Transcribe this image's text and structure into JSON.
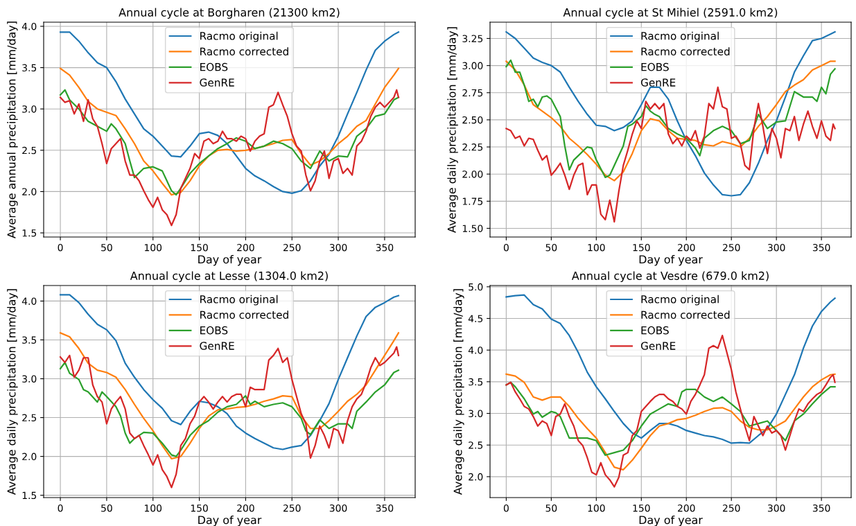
{
  "chart_data": [
    {
      "type": "line",
      "title": "Annual cycle at Borgharen (21300 km2)",
      "xlabel": "Day of year",
      "ylabel": "Average annual precipitation [mm/day]",
      "xlim": [
        -18,
        383
      ],
      "ylim": [
        1.45,
        4.05
      ],
      "xticks": [
        0,
        50,
        100,
        150,
        200,
        250,
        300,
        350
      ],
      "yticks": [
        1.5,
        {
          "value": 2,
          "label": "2.0"
        },
        2.5,
        {
          "value": 3,
          "label": "3.0"
        },
        3.5,
        {
          "value": 4,
          "label": "4.0"
        }
      ],
      "grid": true,
      "legend": "top",
      "x": [
        0,
        10,
        20,
        30,
        40,
        50,
        60,
        70,
        80,
        90,
        100,
        110,
        120,
        130,
        140,
        150,
        160,
        170,
        180,
        190,
        200,
        210,
        220,
        230,
        240,
        250,
        260,
        270,
        280,
        290,
        300,
        310,
        320,
        330,
        340,
        350,
        360,
        365
      ],
      "series": [
        {
          "name": "Racmo original",
          "color": "#1f77b4",
          "values": [
            3.93,
            3.93,
            3.82,
            3.68,
            3.56,
            3.5,
            3.33,
            3.12,
            2.94,
            2.76,
            2.67,
            2.55,
            2.43,
            2.42,
            2.55,
            2.7,
            2.72,
            2.68,
            2.58,
            2.43,
            2.28,
            2.19,
            2.13,
            2.06,
            2.0,
            1.98,
            2.01,
            2.13,
            2.31,
            2.45,
            2.67,
            2.94,
            3.2,
            3.47,
            3.71,
            3.82,
            3.9,
            3.93
          ]
        },
        {
          "name": "Racmo corrected",
          "color": "#ff7f0e",
          "values": [
            3.49,
            3.41,
            3.26,
            3.09,
            3.0,
            2.96,
            2.92,
            2.76,
            2.58,
            2.37,
            2.25,
            2.1,
            1.96,
            1.99,
            2.13,
            2.31,
            2.43,
            2.5,
            2.51,
            2.49,
            2.5,
            2.52,
            2.55,
            2.58,
            2.62,
            2.63,
            2.46,
            2.32,
            2.37,
            2.46,
            2.58,
            2.67,
            2.79,
            2.86,
            3.06,
            3.26,
            3.41,
            3.49
          ]
        },
        {
          "name": "EOBS",
          "color": "#2ca02c",
          "x": [
            0,
            5,
            10,
            20,
            30,
            40,
            50,
            55,
            60,
            70,
            75,
            80,
            90,
            100,
            110,
            120,
            125,
            130,
            140,
            150,
            160,
            170,
            180,
            190,
            200,
            210,
            220,
            230,
            240,
            250,
            260,
            270,
            280,
            290,
            300,
            310,
            320,
            330,
            340,
            350,
            360,
            365
          ],
          "values": [
            3.17,
            3.23,
            3.11,
            3.0,
            2.85,
            2.79,
            2.73,
            2.82,
            2.76,
            2.58,
            2.37,
            2.17,
            2.28,
            2.3,
            2.25,
            2.01,
            1.96,
            2.04,
            2.22,
            2.34,
            2.43,
            2.52,
            2.58,
            2.65,
            2.61,
            2.52,
            2.55,
            2.61,
            2.58,
            2.52,
            2.37,
            2.28,
            2.49,
            2.37,
            2.43,
            2.42,
            2.67,
            2.76,
            2.91,
            2.94,
            3.11,
            3.14
          ]
        },
        {
          "name": "GenRE",
          "color": "#d62728",
          "x": [
            0,
            5,
            10,
            15,
            20,
            25,
            30,
            35,
            40,
            45,
            50,
            55,
            60,
            65,
            70,
            75,
            80,
            85,
            90,
            95,
            100,
            105,
            110,
            115,
            120,
            125,
            130,
            135,
            140,
            145,
            150,
            155,
            160,
            165,
            170,
            175,
            180,
            185,
            190,
            195,
            200,
            205,
            210,
            215,
            220,
            225,
            230,
            235,
            240,
            245,
            250,
            255,
            260,
            265,
            270,
            275,
            280,
            285,
            290,
            295,
            300,
            305,
            310,
            315,
            320,
            325,
            330,
            335,
            340,
            345,
            350,
            355,
            360,
            363,
            365
          ],
          "values": [
            3.14,
            3.08,
            3.1,
            2.94,
            3.06,
            2.85,
            3.11,
            2.88,
            2.79,
            2.58,
            2.34,
            2.52,
            2.58,
            2.64,
            2.37,
            2.2,
            2.2,
            2.13,
            2.01,
            1.9,
            1.81,
            1.93,
            1.78,
            1.72,
            1.59,
            1.72,
            2.04,
            2.16,
            2.28,
            2.46,
            2.4,
            2.61,
            2.64,
            2.58,
            2.61,
            2.73,
            2.64,
            2.64,
            2.61,
            2.67,
            2.64,
            2.49,
            2.61,
            2.67,
            2.7,
            3.02,
            3.05,
            3.2,
            3.05,
            2.91,
            2.7,
            2.55,
            2.49,
            2.2,
            2.01,
            2.13,
            2.37,
            2.49,
            2.16,
            2.37,
            2.4,
            2.22,
            2.28,
            2.2,
            2.55,
            2.61,
            2.73,
            2.91,
            3.02,
            3.08,
            3.02,
            3.08,
            3.14,
            3.23,
            3.14
          ]
        }
      ]
    },
    {
      "type": "line",
      "title": "Annual cycle at St Mihiel (2591.0 km2)",
      "xlabel": "Day of year",
      "ylabel": "Average daily precipitation [mm/day]",
      "xlim": [
        -18,
        383
      ],
      "ylim": [
        1.42,
        3.4
      ],
      "xticks": [
        0,
        50,
        100,
        150,
        200,
        250,
        300,
        350
      ],
      "yticks": [
        {
          "value": 1.5,
          "label": "1.50"
        },
        1.75,
        {
          "value": 2.0,
          "label": "2.00"
        },
        2.25,
        {
          "value": 2.5,
          "label": "2.50"
        },
        2.75,
        {
          "value": 3.0,
          "label": "3.00"
        },
        3.25
      ],
      "grid": true,
      "legend": "top",
      "x": [
        0,
        10,
        20,
        30,
        40,
        50,
        60,
        70,
        80,
        90,
        100,
        110,
        120,
        130,
        140,
        150,
        160,
        170,
        180,
        190,
        200,
        210,
        220,
        230,
        240,
        250,
        260,
        270,
        280,
        290,
        300,
        310,
        320,
        330,
        340,
        350,
        360,
        365
      ],
      "series": [
        {
          "name": "Racmo original",
          "color": "#1f77b4",
          "values": [
            3.31,
            3.25,
            3.16,
            3.07,
            3.03,
            3.0,
            2.94,
            2.8,
            2.67,
            2.55,
            2.45,
            2.44,
            2.4,
            2.43,
            2.49,
            2.64,
            2.8,
            2.8,
            2.69,
            2.49,
            2.31,
            2.17,
            2.01,
            1.9,
            1.81,
            1.8,
            1.81,
            1.92,
            2.1,
            2.31,
            2.49,
            2.71,
            2.94,
            3.09,
            3.23,
            3.25,
            3.29,
            3.31
          ]
        },
        {
          "name": "Racmo corrected",
          "color": "#ff7f0e",
          "values": [
            3.04,
            2.96,
            2.82,
            2.64,
            2.58,
            2.52,
            2.44,
            2.33,
            2.26,
            2.18,
            2.09,
            1.99,
            1.94,
            2.02,
            2.19,
            2.4,
            2.51,
            2.49,
            2.4,
            2.33,
            2.32,
            2.31,
            2.27,
            2.26,
            2.3,
            2.28,
            2.25,
            2.33,
            2.44,
            2.53,
            2.64,
            2.76,
            2.82,
            2.87,
            2.96,
            3.0,
            3.04,
            3.04
          ]
        },
        {
          "name": "EOBS",
          "color": "#2ca02c",
          "x": [
            0,
            5,
            10,
            15,
            20,
            25,
            30,
            35,
            40,
            45,
            50,
            60,
            65,
            70,
            75,
            80,
            90,
            95,
            100,
            110,
            115,
            120,
            130,
            135,
            140,
            150,
            155,
            160,
            165,
            170,
            180,
            190,
            200,
            210,
            215,
            220,
            230,
            240,
            250,
            260,
            270,
            280,
            290,
            300,
            310,
            320,
            330,
            340,
            345,
            350,
            355,
            360,
            365
          ],
          "values": [
            2.99,
            3.05,
            2.94,
            2.94,
            2.82,
            2.67,
            2.69,
            2.62,
            2.71,
            2.72,
            2.69,
            2.53,
            2.26,
            2.04,
            2.13,
            2.17,
            2.25,
            2.24,
            2.13,
            1.97,
            1.99,
            2.08,
            2.26,
            2.44,
            2.46,
            2.53,
            2.63,
            2.58,
            2.55,
            2.53,
            2.42,
            2.37,
            2.33,
            2.24,
            2.17,
            2.33,
            2.4,
            2.44,
            2.4,
            2.28,
            2.31,
            2.55,
            2.42,
            2.48,
            2.49,
            2.76,
            2.71,
            2.71,
            2.67,
            2.8,
            2.74,
            2.92,
            2.97
          ]
        },
        {
          "name": "GenRE",
          "color": "#d62728",
          "x": [
            0,
            5,
            10,
            15,
            20,
            25,
            30,
            35,
            40,
            45,
            50,
            55,
            60,
            65,
            70,
            75,
            80,
            85,
            90,
            95,
            100,
            105,
            110,
            115,
            120,
            125,
            130,
            135,
            140,
            145,
            150,
            155,
            160,
            165,
            170,
            175,
            180,
            185,
            190,
            195,
            200,
            205,
            210,
            215,
            220,
            225,
            230,
            235,
            240,
            245,
            250,
            255,
            260,
            265,
            270,
            275,
            280,
            285,
            290,
            295,
            300,
            305,
            310,
            315,
            320,
            325,
            330,
            335,
            340,
            345,
            350,
            355,
            360,
            363,
            365
          ],
          "values": [
            2.42,
            2.4,
            2.33,
            2.35,
            2.26,
            2.33,
            2.32,
            2.22,
            2.13,
            2.17,
            1.99,
            2.04,
            2.1,
            1.99,
            1.86,
            1.99,
            2.08,
            2.1,
            1.81,
            1.9,
            1.9,
            1.63,
            1.58,
            1.76,
            1.56,
            1.84,
            2.08,
            2.22,
            2.37,
            2.49,
            2.42,
            2.67,
            2.6,
            2.65,
            2.6,
            2.65,
            2.37,
            2.28,
            2.33,
            2.26,
            2.35,
            2.31,
            2.4,
            2.24,
            2.35,
            2.65,
            2.6,
            2.8,
            2.62,
            2.6,
            2.33,
            2.35,
            2.28,
            2.08,
            2.04,
            2.42,
            2.65,
            2.44,
            2.19,
            2.42,
            2.33,
            2.15,
            2.42,
            2.4,
            2.53,
            2.31,
            2.46,
            2.58,
            2.44,
            2.33,
            2.49,
            2.35,
            2.31,
            2.46,
            2.42
          ]
        }
      ]
    },
    {
      "type": "line",
      "title": "Annual cycle at Lesse (1304.0 km2)",
      "xlabel": "Day of year",
      "ylabel": "Average daily precipitation [mm/day]",
      "xlim": [
        -18,
        383
      ],
      "ylim": [
        1.47,
        4.2
      ],
      "xticks": [
        0,
        50,
        100,
        150,
        200,
        250,
        300,
        350
      ],
      "yticks": [
        1.5,
        {
          "value": 2,
          "label": "2.0"
        },
        2.5,
        {
          "value": 3,
          "label": "3.0"
        },
        3.5,
        {
          "value": 4,
          "label": "4.0"
        }
      ],
      "grid": true,
      "legend": "top",
      "x": [
        0,
        10,
        20,
        30,
        40,
        50,
        60,
        70,
        80,
        90,
        100,
        110,
        120,
        130,
        140,
        150,
        160,
        170,
        180,
        190,
        200,
        210,
        220,
        230,
        240,
        250,
        260,
        270,
        280,
        290,
        300,
        310,
        320,
        330,
        340,
        350,
        360,
        365
      ],
      "series": [
        {
          "name": "Racmo original",
          "color": "#1f77b4",
          "values": [
            4.08,
            4.08,
            3.98,
            3.83,
            3.7,
            3.63,
            3.49,
            3.2,
            3.02,
            2.86,
            2.73,
            2.62,
            2.46,
            2.41,
            2.58,
            2.71,
            2.69,
            2.64,
            2.55,
            2.39,
            2.3,
            2.23,
            2.17,
            2.11,
            2.09,
            2.12,
            2.14,
            2.27,
            2.46,
            2.68,
            2.99,
            3.27,
            3.55,
            3.8,
            3.92,
            3.98,
            4.05,
            4.07
          ]
        },
        {
          "name": "Racmo corrected",
          "color": "#ff7f0e",
          "values": [
            3.59,
            3.54,
            3.39,
            3.2,
            3.11,
            3.08,
            3.02,
            2.86,
            2.67,
            2.49,
            2.33,
            2.14,
            1.97,
            2.0,
            2.17,
            2.36,
            2.52,
            2.6,
            2.61,
            2.63,
            2.64,
            2.67,
            2.71,
            2.74,
            2.78,
            2.77,
            2.52,
            2.36,
            2.36,
            2.46,
            2.58,
            2.71,
            2.8,
            2.92,
            3.11,
            3.3,
            3.49,
            3.59
          ]
        },
        {
          "name": "EOBS",
          "color": "#2ca02c",
          "x": [
            0,
            5,
            10,
            20,
            25,
            30,
            40,
            45,
            50,
            60,
            65,
            70,
            75,
            80,
            90,
            100,
            110,
            120,
            125,
            130,
            140,
            150,
            160,
            170,
            180,
            190,
            200,
            205,
            210,
            220,
            230,
            240,
            250,
            260,
            265,
            270,
            280,
            290,
            300,
            310,
            315,
            320,
            330,
            340,
            350,
            360,
            365
          ],
          "values": [
            3.13,
            3.21,
            3.07,
            2.99,
            2.86,
            2.83,
            2.7,
            2.83,
            2.77,
            2.64,
            2.52,
            2.3,
            2.17,
            2.23,
            2.31,
            2.3,
            2.17,
            2.02,
            2.0,
            2.08,
            2.27,
            2.39,
            2.46,
            2.57,
            2.64,
            2.67,
            2.78,
            2.67,
            2.71,
            2.64,
            2.67,
            2.69,
            2.64,
            2.49,
            2.33,
            2.28,
            2.47,
            2.36,
            2.42,
            2.42,
            2.36,
            2.58,
            2.7,
            2.83,
            2.92,
            3.08,
            3.11
          ]
        },
        {
          "name": "GenRE",
          "color": "#d62728",
          "x": [
            0,
            5,
            10,
            15,
            20,
            25,
            30,
            35,
            40,
            45,
            50,
            55,
            60,
            65,
            70,
            75,
            80,
            85,
            90,
            95,
            100,
            105,
            110,
            115,
            120,
            125,
            130,
            135,
            140,
            145,
            150,
            155,
            160,
            165,
            170,
            175,
            180,
            185,
            190,
            195,
            200,
            205,
            210,
            215,
            220,
            225,
            230,
            235,
            240,
            245,
            250,
            255,
            260,
            265,
            270,
            275,
            280,
            285,
            290,
            295,
            300,
            305,
            310,
            315,
            320,
            325,
            330,
            335,
            340,
            345,
            350,
            355,
            360,
            363,
            365
          ],
          "values": [
            3.28,
            3.21,
            3.3,
            3.02,
            3.11,
            3.27,
            3.27,
            2.92,
            2.77,
            2.7,
            2.42,
            2.61,
            2.7,
            2.77,
            2.61,
            2.3,
            2.23,
            2.27,
            2.14,
            2.02,
            1.89,
            2.02,
            1.83,
            1.74,
            1.6,
            1.77,
            2.14,
            2.23,
            2.42,
            2.52,
            2.7,
            2.77,
            2.7,
            2.61,
            2.7,
            2.77,
            2.7,
            2.77,
            2.8,
            2.8,
            2.64,
            2.89,
            2.86,
            2.86,
            2.86,
            3.24,
            3.3,
            3.39,
            3.21,
            3.27,
            2.99,
            2.77,
            2.55,
            2.42,
            1.98,
            2.14,
            2.39,
            2.27,
            2.11,
            2.36,
            2.33,
            2.17,
            2.46,
            2.64,
            2.74,
            2.8,
            2.95,
            3.14,
            3.27,
            3.17,
            3.21,
            3.27,
            3.33,
            3.41,
            3.3
          ]
        }
      ]
    },
    {
      "type": "line",
      "title": "Annual cycle at Vesdre (679.0 km2)",
      "xlabel": "Day of year",
      "ylabel": "Average daily precipitation [mm/day]",
      "xlim": [
        -18,
        383
      ],
      "ylim": [
        1.67,
        5.02
      ],
      "xticks": [
        0,
        50,
        100,
        150,
        200,
        250,
        300,
        350
      ],
      "yticks": [
        {
          "value": 2,
          "label": "2.0"
        },
        2.5,
        {
          "value": 3,
          "label": "3.0"
        },
        3.5,
        {
          "value": 4,
          "label": "4.0"
        },
        4.5,
        {
          "value": 5,
          "label": "5.0"
        }
      ],
      "grid": true,
      "legend": "top",
      "x": [
        0,
        10,
        20,
        30,
        40,
        50,
        60,
        70,
        80,
        90,
        100,
        110,
        120,
        130,
        140,
        150,
        160,
        170,
        180,
        190,
        200,
        210,
        220,
        230,
        240,
        250,
        260,
        270,
        280,
        290,
        300,
        310,
        320,
        330,
        340,
        350,
        360,
        365
      ],
      "series": [
        {
          "name": "Racmo original",
          "color": "#1f77b4",
          "values": [
            4.84,
            4.86,
            4.87,
            4.72,
            4.65,
            4.49,
            4.42,
            4.23,
            3.96,
            3.65,
            3.42,
            3.23,
            3.03,
            2.84,
            2.69,
            2.61,
            2.73,
            2.84,
            2.84,
            2.8,
            2.73,
            2.69,
            2.65,
            2.63,
            2.59,
            2.53,
            2.54,
            2.53,
            2.65,
            2.76,
            2.99,
            3.3,
            3.61,
            4.03,
            4.38,
            4.61,
            4.76,
            4.82
          ]
        },
        {
          "name": "Racmo corrected",
          "color": "#ff7f0e",
          "values": [
            3.62,
            3.59,
            3.49,
            3.26,
            3.21,
            3.26,
            3.26,
            3.11,
            2.92,
            2.76,
            2.61,
            2.38,
            2.15,
            2.11,
            2.26,
            2.45,
            2.65,
            2.8,
            2.84,
            2.9,
            2.92,
            2.97,
            3.03,
            3.08,
            3.09,
            3.03,
            2.88,
            2.78,
            2.74,
            2.74,
            2.8,
            2.88,
            3.07,
            3.26,
            3.42,
            3.53,
            3.61,
            3.62
          ]
        },
        {
          "name": "EOBS",
          "color": "#2ca02c",
          "x": [
            0,
            5,
            10,
            20,
            30,
            35,
            40,
            50,
            55,
            60,
            70,
            80,
            90,
            100,
            110,
            120,
            130,
            140,
            150,
            160,
            170,
            180,
            190,
            195,
            200,
            210,
            220,
            230,
            240,
            250,
            260,
            270,
            280,
            290,
            300,
            310,
            320,
            330,
            340,
            350,
            360,
            365
          ],
          "values": [
            3.45,
            3.49,
            3.42,
            3.23,
            2.99,
            3.03,
            2.94,
            3.03,
            3.01,
            2.95,
            2.61,
            2.61,
            2.61,
            2.57,
            2.34,
            2.38,
            2.42,
            2.57,
            2.8,
            2.99,
            3.07,
            3.15,
            3.11,
            3.34,
            3.38,
            3.38,
            3.26,
            3.19,
            3.26,
            3.15,
            3.03,
            2.8,
            2.84,
            2.88,
            2.73,
            2.57,
            2.88,
            2.99,
            3.15,
            3.3,
            3.42,
            3.42
          ]
        },
        {
          "name": "GenRE",
          "color": "#d62728",
          "x": [
            0,
            5,
            10,
            15,
            20,
            25,
            30,
            35,
            40,
            45,
            50,
            55,
            60,
            65,
            70,
            75,
            80,
            85,
            90,
            95,
            100,
            105,
            110,
            115,
            120,
            125,
            130,
            135,
            140,
            145,
            150,
            155,
            160,
            165,
            170,
            175,
            180,
            185,
            190,
            195,
            200,
            205,
            210,
            215,
            220,
            225,
            230,
            235,
            240,
            245,
            250,
            255,
            260,
            265,
            270,
            275,
            280,
            285,
            290,
            295,
            300,
            305,
            310,
            315,
            320,
            325,
            330,
            335,
            340,
            345,
            350,
            355,
            360,
            363,
            365
          ],
          "values": [
            3.45,
            3.49,
            3.34,
            3.23,
            3.11,
            3.07,
            2.95,
            2.8,
            2.88,
            2.84,
            2.65,
            2.95,
            2.99,
            3.15,
            2.95,
            2.8,
            2.57,
            2.49,
            2.3,
            2.07,
            2.03,
            2.22,
            2.03,
            1.95,
            1.84,
            1.99,
            2.34,
            2.38,
            2.65,
            2.73,
            3.03,
            3.11,
            3.19,
            3.26,
            3.3,
            3.3,
            3.23,
            3.19,
            3.11,
            3.07,
            2.99,
            3.19,
            3.3,
            3.45,
            3.61,
            4.03,
            4.07,
            4.03,
            4.23,
            3.96,
            3.69,
            3.34,
            3.07,
            2.8,
            2.57,
            2.95,
            2.8,
            2.65,
            2.8,
            2.69,
            2.73,
            2.65,
            2.42,
            2.65,
            2.88,
            3.07,
            3.03,
            3.15,
            3.23,
            3.3,
            3.34,
            3.45,
            3.57,
            3.61,
            3.49
          ]
        }
      ]
    }
  ]
}
